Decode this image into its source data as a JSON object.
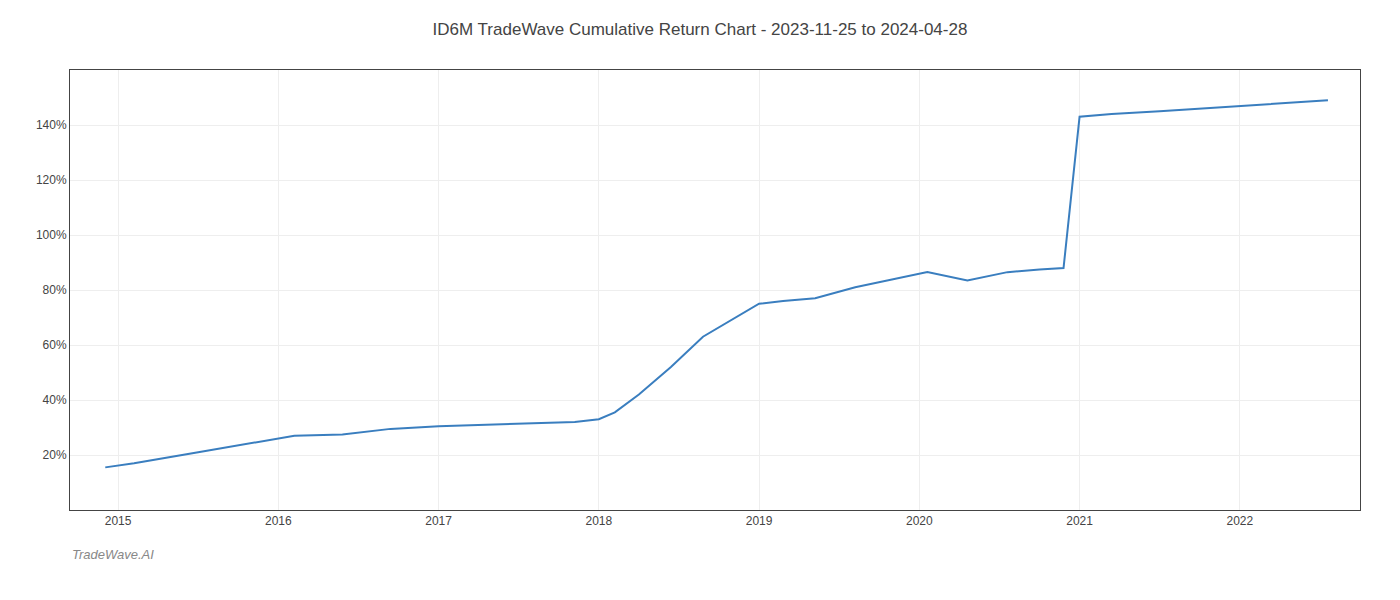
{
  "chart_data": {
    "type": "line",
    "title": "ID6M TradeWave Cumulative Return Chart - 2023-11-25 to 2024-04-28",
    "annotations": [
      "TradeWave.AI"
    ],
    "x": [
      2014.92,
      2015.1,
      2015.5,
      2015.9,
      2016.1,
      2016.4,
      2016.7,
      2017.0,
      2017.3,
      2017.6,
      2017.85,
      2018.0,
      2018.1,
      2018.25,
      2018.45,
      2018.65,
      2018.85,
      2019.0,
      2019.15,
      2019.35,
      2019.6,
      2019.85,
      2020.05,
      2020.3,
      2020.55,
      2020.75,
      2020.9,
      2021.0,
      2021.2,
      2021.5,
      2021.75,
      2022.0,
      2022.3,
      2022.55
    ],
    "values": [
      15.5,
      17.0,
      21.0,
      25.0,
      27.0,
      27.5,
      29.5,
      30.5,
      31.0,
      31.5,
      32.0,
      33.0,
      35.5,
      42.0,
      52.0,
      63.0,
      70.0,
      75.0,
      76.0,
      77.0,
      81.0,
      84.0,
      86.5,
      83.5,
      86.5,
      87.5,
      88.0,
      143.0,
      144.0,
      145.0,
      146.0,
      147.0,
      148.0,
      149.0
    ],
    "color": "#3a7ebf",
    "xlim": [
      2014.7,
      2022.75
    ],
    "xticks": [
      2015,
      2016,
      2017,
      2018,
      2019,
      2020,
      2021,
      2022
    ],
    "ylim": [
      0,
      160
    ],
    "yticks": [
      {
        "value": 20,
        "label": "20%"
      },
      {
        "value": 40,
        "label": "40%"
      },
      {
        "value": 60,
        "label": "60%"
      },
      {
        "value": 80,
        "label": "80%"
      },
      {
        "value": 100,
        "label": "100%"
      },
      {
        "value": 120,
        "label": "120%"
      },
      {
        "value": 140,
        "label": "140%"
      }
    ],
    "grid": true
  }
}
